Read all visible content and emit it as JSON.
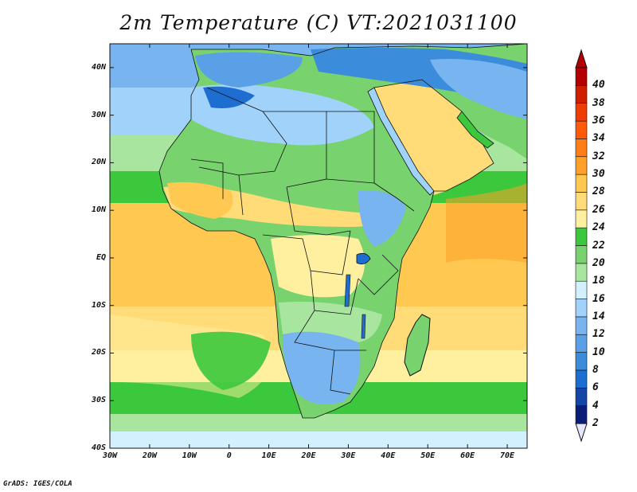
{
  "title": "2m Temperature (C) VT:2021031100",
  "credit": "GrADS: IGES/COLA",
  "lat_labels": [
    "40N",
    "30N",
    "20N",
    "10N",
    "EQ",
    "10S",
    "20S",
    "30S",
    "40S"
  ],
  "lon_labels": [
    "30W",
    "20W",
    "10W",
    "0",
    "10E",
    "20E",
    "30E",
    "40E",
    "50E",
    "60E",
    "70E"
  ],
  "colorbar": {
    "levels": [
      "2",
      "4",
      "6",
      "8",
      "10",
      "12",
      "14",
      "16",
      "18",
      "20",
      "22",
      "24",
      "26",
      "28",
      "30",
      "32",
      "34",
      "36",
      "38",
      "40"
    ],
    "colors": [
      "#0a1e78",
      "#1446a8",
      "#1e6ed2",
      "#3c8cdc",
      "#5aa0e6",
      "#78b4f0",
      "#a0d2fa",
      "#d2f0ff",
      "#a8e6a0",
      "#78d26e",
      "#3cc83c",
      "#fff0a0",
      "#ffdc78",
      "#ffc850",
      "#ffa028",
      "#ff7d14",
      "#ff5a0a",
      "#f03c05",
      "#d21e00",
      "#b40000"
    ],
    "under_color": "#e6e6ff",
    "over_color": "#b40000"
  },
  "map": {
    "lat_range": [
      -40,
      45
    ],
    "lon_range": [
      -30,
      75
    ],
    "field": "2m temperature",
    "units": "C",
    "ocean_colors": [
      "#ffc850",
      "#ffdc78",
      "#fff0a0",
      "#3cc83c",
      "#78d26e",
      "#a8e6a0",
      "#d2f0ff"
    ],
    "land_colors": [
      "#78d26e",
      "#3cc83c",
      "#a8e6a0",
      "#fff0a0",
      "#78b4f0"
    ]
  }
}
